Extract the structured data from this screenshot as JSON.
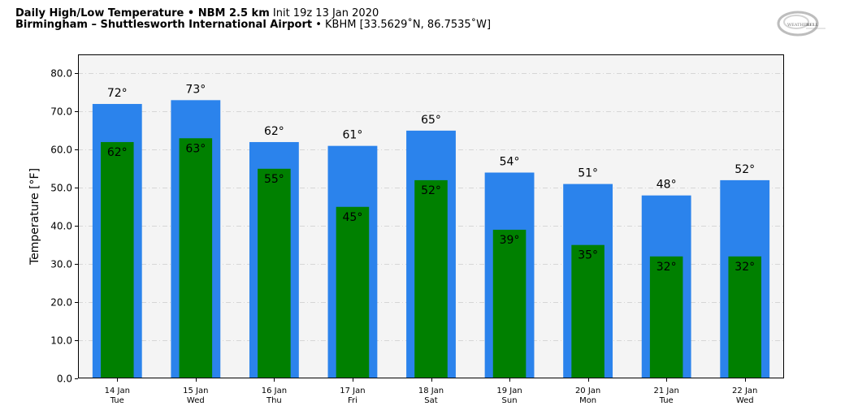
{
  "header": {
    "title_bold": "Daily High/Low Temperature • NBM 2.5 km",
    "title_rest": "Init 19z 13 Jan 2020",
    "location_bold": "Birmingham – Shuttlesworth International Airport",
    "location_rest": "• KBHM [33.5629˚N, 86.7535˚W]"
  },
  "logo": {
    "icon": "weatherbell-logo",
    "text_left": "WEATHER",
    "text_right": "BELL"
  },
  "colors": {
    "high": "#2b83ec",
    "low": "#008000",
    "plot_bg": "#f4f4f4",
    "grid": "#cccccc"
  },
  "chart_data": {
    "type": "bar",
    "ylabel": "Temperature [°F]",
    "ylim": [
      0,
      85
    ],
    "yticks": [
      "0.0",
      "10.0",
      "20.0",
      "30.0",
      "40.0",
      "50.0",
      "60.0",
      "70.0",
      "80.0"
    ],
    "grid": true,
    "categories": [
      {
        "date": "14 Jan",
        "day": "Tue"
      },
      {
        "date": "15 Jan",
        "day": "Wed"
      },
      {
        "date": "16 Jan",
        "day": "Thu"
      },
      {
        "date": "17 Jan",
        "day": "Fri"
      },
      {
        "date": "18 Jan",
        "day": "Sat"
      },
      {
        "date": "19 Jan",
        "day": "Sun"
      },
      {
        "date": "20 Jan",
        "day": "Mon"
      },
      {
        "date": "21 Jan",
        "day": "Tue"
      },
      {
        "date": "22 Jan",
        "day": "Wed"
      }
    ],
    "series": [
      {
        "values": [
          72,
          73,
          62,
          61,
          65,
          54,
          51,
          48,
          52
        ],
        "labels": [
          "72°",
          "73°",
          "62°",
          "61°",
          "65°",
          "54°",
          "51°",
          "48°",
          "52°"
        ]
      },
      {
        "values": [
          62,
          63,
          55,
          45,
          52,
          39,
          35,
          32,
          32
        ],
        "labels": [
          "62°",
          "63°",
          "55°",
          "45°",
          "52°",
          "39°",
          "35°",
          "32°",
          "32°"
        ]
      }
    ]
  }
}
